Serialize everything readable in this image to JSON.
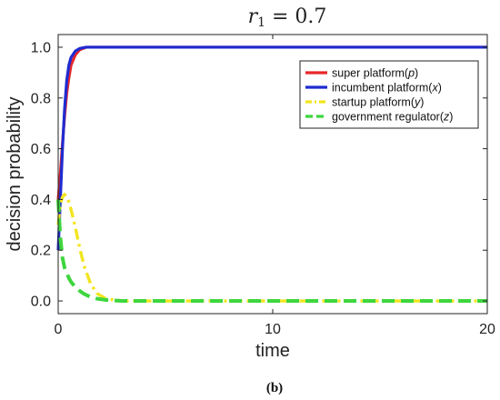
{
  "chart_data": {
    "type": "line",
    "title": "r1 = 0.7",
    "title_parts": {
      "var": "r",
      "sub": "1",
      "rest": " = 0.7"
    },
    "xlabel": "time",
    "ylabel": "decision probability",
    "xlim": [
      0,
      20
    ],
    "ylim": [
      -0.05,
      1.05
    ],
    "xticks": [
      0,
      10,
      20
    ],
    "xtick_labels": [
      "0",
      "10",
      "20"
    ],
    "yticks": [
      0,
      0.2,
      0.4,
      0.6,
      0.8,
      1.0
    ],
    "ytick_labels": [
      "0.0",
      "0.2",
      "0.4",
      "0.6",
      "0.8",
      "1.0"
    ],
    "grid": false,
    "legend_position": "top-right",
    "series": [
      {
        "name": "super platform(p)",
        "label_main": "super platform(",
        "label_var": "p",
        "label_end": ")",
        "color": "#e8262a",
        "dash": "solid",
        "x": [
          0,
          0.1,
          0.2,
          0.3,
          0.4,
          0.5,
          0.6,
          0.8,
          1.0,
          1.3,
          1.6,
          2,
          3,
          5,
          10,
          15,
          20
        ],
        "y": [
          0.4,
          0.5,
          0.62,
          0.73,
          0.82,
          0.88,
          0.93,
          0.97,
          0.99,
          1.0,
          1.0,
          1.0,
          1.0,
          1.0,
          1.0,
          1.0,
          1.0
        ]
      },
      {
        "name": "incumbent platform(x)",
        "label_main": "incumbent platform(",
        "label_var": "x",
        "label_end": ")",
        "color": "#1f2bd1",
        "dash": "solid",
        "x": [
          0,
          0.1,
          0.2,
          0.3,
          0.4,
          0.5,
          0.6,
          0.8,
          1.0,
          1.3,
          1.6,
          2,
          3,
          5,
          10,
          15,
          20
        ],
        "y": [
          0.2,
          0.4,
          0.6,
          0.76,
          0.87,
          0.93,
          0.96,
          0.985,
          0.995,
          1.0,
          1.0,
          1.0,
          1.0,
          1.0,
          1.0,
          1.0,
          1.0
        ]
      },
      {
        "name": "startup platform(y)",
        "label_main": "startup platform(",
        "label_var": "y",
        "label_end": ")",
        "color": "#f2e51f",
        "dash": "dashdot",
        "x": [
          0,
          0.1,
          0.2,
          0.3,
          0.4,
          0.5,
          0.6,
          0.8,
          1.0,
          1.2,
          1.5,
          1.8,
          2.2,
          2.6,
          3,
          4,
          5,
          10,
          15,
          20
        ],
        "y": [
          0.3,
          0.38,
          0.41,
          0.42,
          0.41,
          0.39,
          0.36,
          0.29,
          0.21,
          0.14,
          0.07,
          0.03,
          0.01,
          0.004,
          0.0,
          0.0,
          0.0,
          0.0,
          0.0,
          0.0
        ]
      },
      {
        "name": "government regulator(z)",
        "label_main": "government regulator(",
        "label_var": "z",
        "label_end": ")",
        "color": "#3ed63e",
        "dash": "dashed",
        "x": [
          0,
          0.1,
          0.2,
          0.3,
          0.4,
          0.5,
          0.6,
          0.8,
          1.0,
          1.2,
          1.5,
          1.8,
          2.2,
          2.6,
          3,
          4,
          5,
          10,
          15,
          20
        ],
        "y": [
          0.4,
          0.25,
          0.17,
          0.13,
          0.11,
          0.09,
          0.075,
          0.055,
          0.04,
          0.028,
          0.016,
          0.009,
          0.004,
          0.002,
          0.0,
          0.0,
          0.0,
          0.0,
          0.0,
          0.0
        ]
      }
    ]
  },
  "caption": "(b)"
}
